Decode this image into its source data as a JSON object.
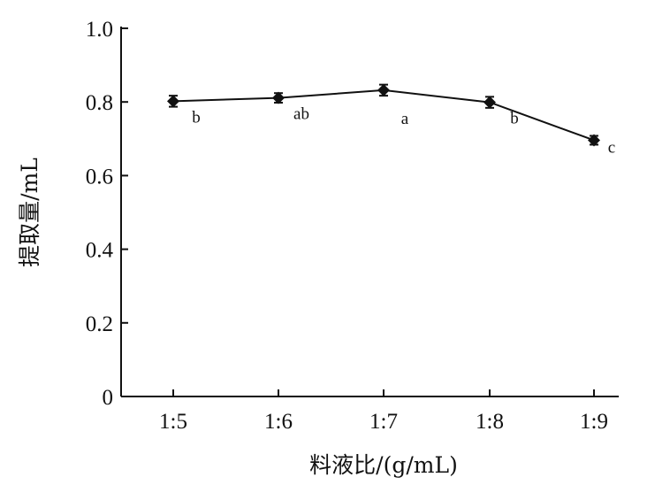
{
  "chart_data": {
    "type": "line",
    "title": "",
    "xlabel": "料液比/(g/mL)",
    "ylabel": "提取量/mL",
    "categories": [
      "1:5",
      "1:6",
      "1:7",
      "1:8",
      "1:9"
    ],
    "ylim": [
      0,
      1.0
    ],
    "yticks": [
      0,
      0.2,
      0.4,
      0.6,
      0.8,
      1.0
    ],
    "ytick_labels": [
      "0",
      "0.2",
      "0.4",
      "0.6",
      "0.8",
      "1.0"
    ],
    "grid": false,
    "series": [
      {
        "values": [
          0.802,
          0.811,
          0.832,
          0.799,
          0.696
        ],
        "errors": [
          0.015,
          0.013,
          0.015,
          0.015,
          0.012
        ],
        "significance": [
          "b",
          "ab",
          "a",
          "b",
          "c"
        ],
        "marker": "diamond",
        "color": "#111111"
      }
    ]
  }
}
